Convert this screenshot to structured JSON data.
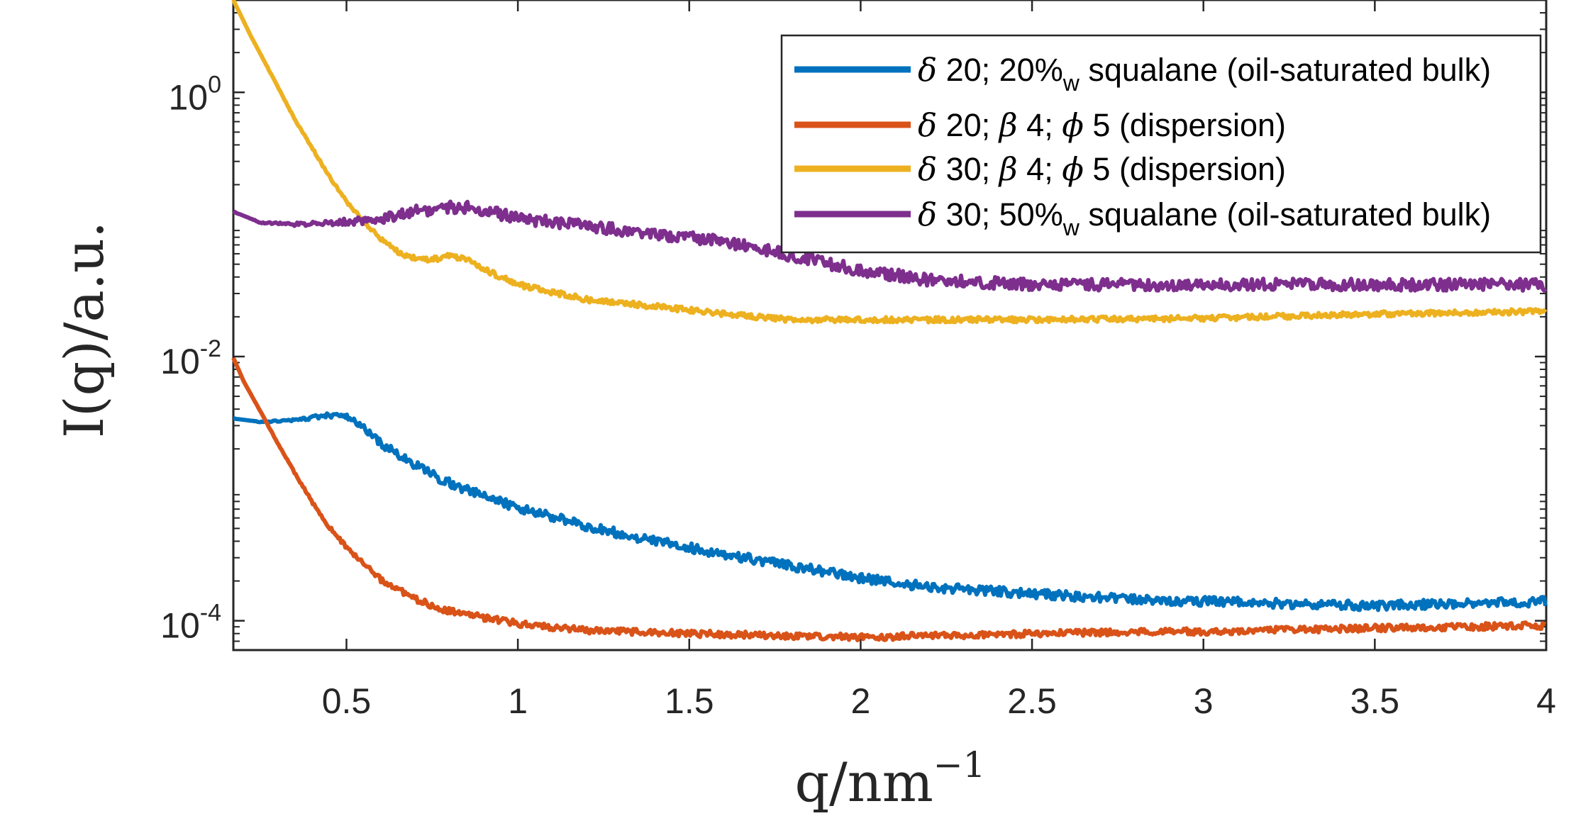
{
  "colors": {
    "blue": "#0072BD",
    "orange": "#D95319",
    "yellow": "#EDB120",
    "purple": "#7E2F8E",
    "axis": "#262626"
  },
  "chart_data": {
    "type": "line",
    "xscale": "linear",
    "yscale": "log",
    "xlim": [
      0.17,
      4.0
    ],
    "ylim": [
      6e-05,
      5.0
    ],
    "xlabel": "q/nm",
    "xlabel_exponent": "−1",
    "ylabel": "I(q)/a.u.",
    "xticks": [
      0.5,
      1,
      1.5,
      2,
      2.5,
      3,
      3.5,
      4
    ],
    "xtick_labels": [
      "0.5",
      "1",
      "1.5",
      "2",
      "2.5",
      "3",
      "3.5",
      "4"
    ],
    "yticks": [
      0.0001,
      0.01,
      1
    ],
    "ytick_labels": [
      {
        "base": "10",
        "exp": "-4"
      },
      {
        "base": "10",
        "exp": "-2"
      },
      {
        "base": "10",
        "exp": "0"
      }
    ],
    "legend_position": "top-right",
    "series": [
      {
        "name": "δ 20; 20%w squalane (oil-saturated bulk)",
        "legend": {
          "sym": "δ",
          "text": " 20; 20%",
          "sub": "w",
          "rest": " squalane (oil-saturated bulk)"
        },
        "color": "#0072BD",
        "points": [
          [
            0.17,
            0.0034
          ],
          [
            0.25,
            0.0032
          ],
          [
            0.35,
            0.0033
          ],
          [
            0.45,
            0.0036
          ],
          [
            0.5,
            0.0035
          ],
          [
            0.55,
            0.0029
          ],
          [
            0.6,
            0.0022
          ],
          [
            0.7,
            0.0015
          ],
          [
            0.8,
            0.0011
          ],
          [
            0.9,
            0.00088
          ],
          [
            1.0,
            0.00072
          ],
          [
            1.2,
            0.00052
          ],
          [
            1.4,
            0.0004
          ],
          [
            1.6,
            0.00032
          ],
          [
            1.8,
            0.00026
          ],
          [
            2.0,
            0.00021
          ],
          [
            2.2,
            0.00018
          ],
          [
            2.5,
            0.00016
          ],
          [
            2.8,
            0.000145
          ],
          [
            3.0,
            0.00014
          ],
          [
            3.5,
            0.00013
          ],
          [
            4.0,
            0.00014
          ]
        ]
      },
      {
        "name": "δ 20; β 4; ϕ 5 (dispersion)",
        "legend": {
          "sym": "δ",
          "text": " 20; ",
          "sym2": "β",
          "text2": " 4; ",
          "sym3": "ϕ",
          "text3": " 5 (dispersion)"
        },
        "color": "#D95319",
        "points": [
          [
            0.17,
            0.0098
          ],
          [
            0.2,
            0.0065
          ],
          [
            0.25,
            0.0038
          ],
          [
            0.3,
            0.0022
          ],
          [
            0.35,
            0.0013
          ],
          [
            0.4,
            0.00079
          ],
          [
            0.45,
            0.00051
          ],
          [
            0.5,
            0.00036
          ],
          [
            0.55,
            0.00027
          ],
          [
            0.6,
            0.000205
          ],
          [
            0.7,
            0.000145
          ],
          [
            0.8,
            0.000118
          ],
          [
            1.0,
            9.5e-05
          ],
          [
            1.2,
            8.5e-05
          ],
          [
            1.5,
            8e-05
          ],
          [
            2.0,
            7.5e-05
          ],
          [
            2.5,
            8e-05
          ],
          [
            3.0,
            8.3e-05
          ],
          [
            3.5,
            8.8e-05
          ],
          [
            4.0,
            9.2e-05
          ]
        ]
      },
      {
        "name": "δ 30; β 4; ϕ 5 (dispersion)",
        "legend": {
          "sym": "δ",
          "text": " 30; ",
          "sym2": "β",
          "text2": " 4; ",
          "sym3": "ϕ",
          "text3": " 5 (dispersion)"
        },
        "color": "#EDB120",
        "points": [
          [
            0.17,
            5.0
          ],
          [
            0.22,
            2.7
          ],
          [
            0.3,
            1.1
          ],
          [
            0.35,
            0.62
          ],
          [
            0.4,
            0.38
          ],
          [
            0.45,
            0.23
          ],
          [
            0.5,
            0.15
          ],
          [
            0.55,
            0.105
          ],
          [
            0.6,
            0.078
          ],
          [
            0.65,
            0.062
          ],
          [
            0.7,
            0.055
          ],
          [
            0.75,
            0.054
          ],
          [
            0.8,
            0.058
          ],
          [
            0.85,
            0.055
          ],
          [
            0.9,
            0.046
          ],
          [
            1.0,
            0.035
          ],
          [
            1.2,
            0.027
          ],
          [
            1.4,
            0.024
          ],
          [
            1.6,
            0.021
          ],
          [
            1.8,
            0.019
          ],
          [
            2.0,
            0.019
          ],
          [
            2.5,
            0.019
          ],
          [
            3.0,
            0.0195
          ],
          [
            3.5,
            0.021
          ],
          [
            4.0,
            0.022
          ]
        ]
      },
      {
        "name": "δ 30; 50%w squalane (oil-saturated bulk)",
        "legend": {
          "sym": "δ",
          "text": " 30; 50%",
          "sub": "w",
          "rest": " squalane (oil-saturated bulk)"
        },
        "color": "#7E2F8E",
        "points": [
          [
            0.17,
            0.125
          ],
          [
            0.25,
            0.103
          ],
          [
            0.35,
            0.1
          ],
          [
            0.5,
            0.105
          ],
          [
            0.6,
            0.11
          ],
          [
            0.7,
            0.125
          ],
          [
            0.8,
            0.135
          ],
          [
            0.85,
            0.135
          ],
          [
            0.9,
            0.128
          ],
          [
            1.0,
            0.112
          ],
          [
            1.2,
            0.097
          ],
          [
            1.4,
            0.085
          ],
          [
            1.6,
            0.074
          ],
          [
            1.8,
            0.058
          ],
          [
            2.0,
            0.045
          ],
          [
            2.2,
            0.038
          ],
          [
            2.5,
            0.035
          ],
          [
            3.0,
            0.035
          ],
          [
            3.5,
            0.035
          ],
          [
            4.0,
            0.035
          ]
        ]
      }
    ]
  }
}
